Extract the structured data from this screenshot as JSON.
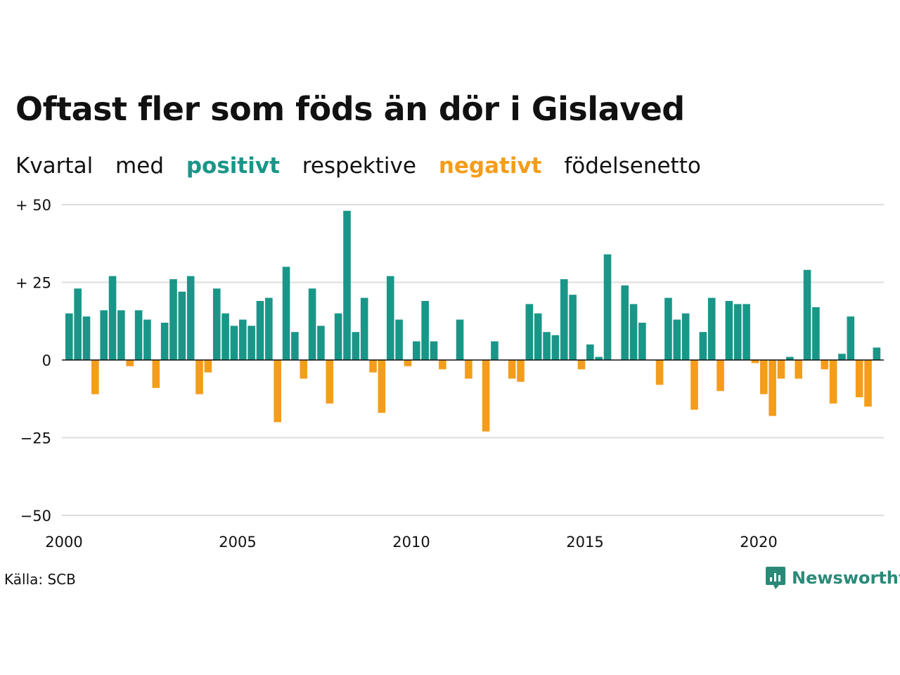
{
  "title": "Oftast fler som föds än dör i Gislaved",
  "subtitle": {
    "part1": "Kvartal",
    "part2": "med",
    "positive_word": "positivt",
    "part3": "respektive",
    "negative_word": "negativt",
    "part4": "födelsenetto"
  },
  "colors": {
    "positive": "#1a9688",
    "negative": "#f49d1b",
    "grid": "#dcdcdc",
    "zero": "#111111"
  },
  "source": "Källa: SCB",
  "brand": {
    "name": "Newsworthy",
    "color": "#2a8a78",
    "icon": "newsworthy-logo-icon"
  },
  "chart_data": {
    "type": "bar",
    "x_start": 2000,
    "x_step_per_bar": 0.25,
    "x_ticks": [
      "2000",
      "2005",
      "2010",
      "2015",
      "2020"
    ],
    "y_ticks": [
      {
        "value": 50,
        "label": "+ 50"
      },
      {
        "value": 25,
        "label": "+ 25"
      },
      {
        "value": 0,
        "label": "0"
      },
      {
        "value": -25,
        "label": "−25"
      },
      {
        "value": -50,
        "label": "−50"
      }
    ],
    "ylim": [
      -50,
      50
    ],
    "grid": true,
    "values": [
      15,
      23,
      14,
      -11,
      16,
      27,
      16,
      -2,
      16,
      13,
      -9,
      12,
      26,
      22,
      27,
      -11,
      -4,
      23,
      15,
      11,
      13,
      11,
      19,
      20,
      -20,
      30,
      9,
      -6,
      23,
      11,
      -14,
      15,
      48,
      9,
      20,
      -4,
      -17,
      27,
      13,
      -2,
      6,
      19,
      6,
      -3,
      0,
      13,
      -6,
      0,
      -23,
      6,
      0,
      -6,
      -7,
      18,
      15,
      9,
      8,
      26,
      21,
      -3,
      5,
      1,
      34,
      0,
      24,
      18,
      12,
      0,
      -8,
      20,
      13,
      15,
      -16,
      9,
      20,
      -10,
      19,
      18,
      18,
      -1,
      -11,
      -18,
      -6,
      1,
      -6,
      29,
      17,
      -3,
      -14,
      2,
      14,
      -12,
      -15,
      4
    ]
  }
}
